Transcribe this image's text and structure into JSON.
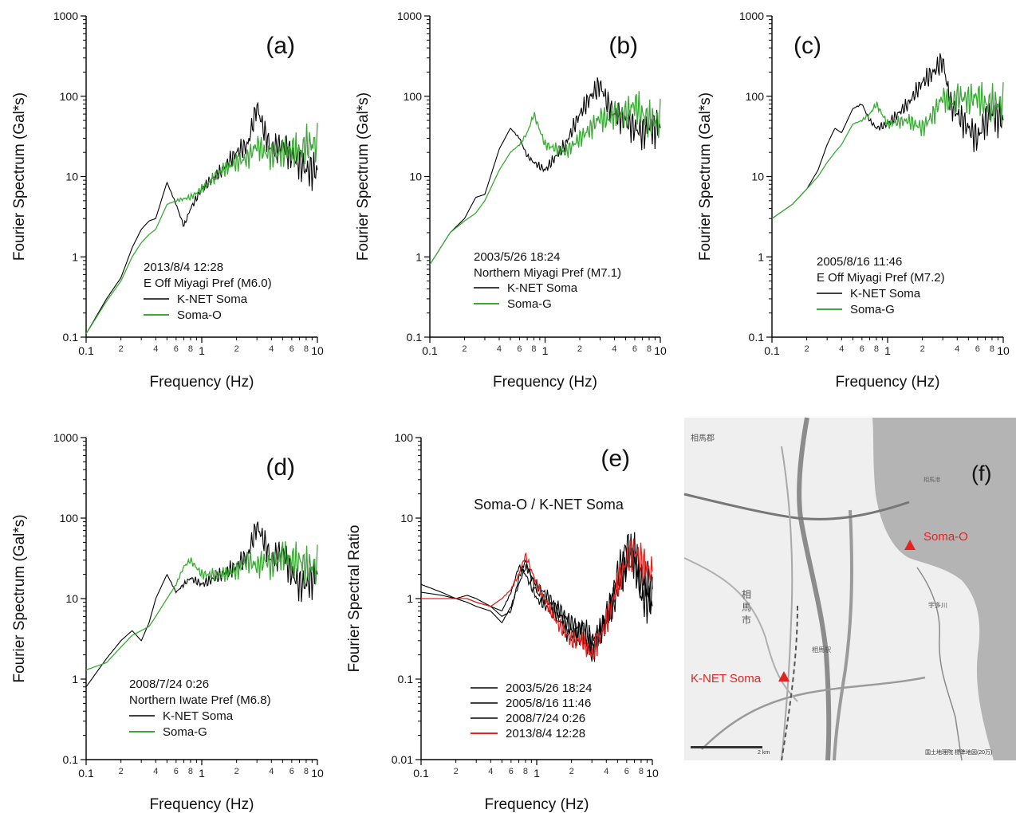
{
  "panels": [
    {
      "id": "a",
      "panel_label": "(a)",
      "ylabel": "Fourier Spectrum (Gal*s)",
      "xlabel": "Frequency (Hz)",
      "ytick_labels": [
        "1000",
        "100",
        "10",
        "1",
        "0.1"
      ],
      "xtick_major": [
        "0.1",
        "1",
        "10"
      ],
      "xtick_minor": [
        "2",
        "4",
        "6",
        "8",
        "2",
        "4",
        "6",
        "8"
      ],
      "event_lines": [
        "2013/8/4 12:28",
        "E Off Miyagi Pref (M6.0)"
      ],
      "legend": [
        {
          "label": "K-NET Soma",
          "color": "#000000"
        },
        {
          "label": "Soma-O",
          "color": "#3aaa35"
        }
      ]
    },
    {
      "id": "b",
      "panel_label": "(b)",
      "ylabel": "Fourier Spectrum (Gal*s)",
      "xlabel": "Frequency (Hz)",
      "ytick_labels": [
        "1000",
        "100",
        "10",
        "1",
        "0.1"
      ],
      "xtick_major": [
        "0.1",
        "1",
        "10"
      ],
      "xtick_minor": [
        "2",
        "4",
        "6",
        "8",
        "2",
        "4",
        "6",
        "8"
      ],
      "event_lines": [
        "2003/5/26 18:24",
        "Northern Miyagi Pref (M7.1)"
      ],
      "legend": [
        {
          "label": "K-NET Soma",
          "color": "#000000"
        },
        {
          "label": "Soma-G",
          "color": "#3aaa35"
        }
      ]
    },
    {
      "id": "c",
      "panel_label": "(c)",
      "ylabel": "Fourier Spectrum (Gal*s)",
      "xlabel": "Frequency (Hz)",
      "ytick_labels": [
        "1000",
        "100",
        "10",
        "1",
        "0.1"
      ],
      "xtick_major": [
        "0.1",
        "1",
        "10"
      ],
      "xtick_minor": [
        "2",
        "4",
        "6",
        "8",
        "2",
        "4",
        "6",
        "8"
      ],
      "event_lines": [
        "2005/8/16 11:46",
        "E Off Miyagi Pref (M7.2)"
      ],
      "legend": [
        {
          "label": "K-NET Soma",
          "color": "#000000"
        },
        {
          "label": "Soma-G",
          "color": "#3aaa35"
        }
      ]
    },
    {
      "id": "d",
      "panel_label": "(d)",
      "ylabel": "Fourier Spectrum (Gal*s)",
      "xlabel": "Frequency (Hz)",
      "ytick_labels": [
        "1000",
        "100",
        "10",
        "1",
        "0.1"
      ],
      "xtick_major": [
        "0.1",
        "1",
        "10"
      ],
      "xtick_minor": [
        "2",
        "4",
        "6",
        "8",
        "2",
        "4",
        "6",
        "8"
      ],
      "event_lines": [
        "2008/7/24 0:26",
        "Northern Iwate Pref (M6.8)"
      ],
      "legend": [
        {
          "label": "K-NET Soma",
          "color": "#000000"
        },
        {
          "label": "Soma-G",
          "color": "#3aaa35"
        }
      ]
    },
    {
      "id": "e",
      "panel_label": "(e)",
      "ylabel": "Fourier Spectral Ratio",
      "xlabel": "Frequency (Hz)",
      "ytick_labels": [
        "100",
        "10",
        "1",
        "0.1",
        "0.01"
      ],
      "xtick_major": [
        "0.1",
        "1",
        "10"
      ],
      "xtick_minor": [
        "2",
        "4",
        "6",
        "8",
        "2",
        "4",
        "6",
        "8"
      ],
      "ratio_title": "Soma-O / K-NET Soma",
      "legend": [
        {
          "label": "2003/5/26 18:24",
          "color": "#000000"
        },
        {
          "label": "2005/8/16 11:46",
          "color": "#000000"
        },
        {
          "label": "2008/7/24 0:26",
          "color": "#000000"
        },
        {
          "label": "2013/8/4 12:28",
          "color": "#e3231f"
        }
      ]
    }
  ],
  "map": {
    "panel_label": "(f)",
    "station_labels": [
      "Soma-O",
      "K-NET Soma"
    ],
    "station_color": "#e3231f"
  },
  "chart_data": [
    {
      "type": "line",
      "panel": "a",
      "x_scale": "log",
      "y_scale": "log",
      "xlim": [
        0.1,
        10
      ],
      "ylim": [
        0.1,
        1000
      ],
      "series": [
        {
          "name": "K-NET Soma",
          "color": "#000000",
          "x": [
            0.1,
            0.15,
            0.2,
            0.25,
            0.3,
            0.35,
            0.4,
            0.5,
            0.6,
            0.7,
            0.8,
            1,
            1.5,
            2,
            2.5,
            3,
            3.5,
            4,
            5,
            6,
            7,
            8,
            10
          ],
          "y": [
            0.11,
            0.3,
            0.55,
            1.3,
            2.2,
            2.8,
            3.0,
            8.5,
            4.5,
            2.4,
            4.0,
            7.0,
            12,
            20,
            25,
            75,
            35,
            22,
            25,
            18,
            15,
            12,
            12
          ]
        },
        {
          "name": "Soma-O",
          "color": "#3aaa35",
          "x": [
            0.1,
            0.15,
            0.2,
            0.25,
            0.3,
            0.35,
            0.4,
            0.5,
            0.6,
            0.7,
            0.8,
            1,
            1.5,
            2,
            2.5,
            3,
            3.5,
            4,
            5,
            6,
            7,
            8,
            10
          ],
          "y": [
            0.11,
            0.28,
            0.5,
            1.0,
            1.5,
            1.9,
            2.2,
            4.5,
            5.0,
            5.3,
            5.5,
            7.0,
            12,
            15,
            17,
            25,
            20,
            18,
            20,
            22,
            20,
            25,
            25
          ]
        }
      ]
    },
    {
      "type": "line",
      "panel": "b",
      "x_scale": "log",
      "y_scale": "log",
      "xlim": [
        0.1,
        10
      ],
      "ylim": [
        0.1,
        1000
      ],
      "series": [
        {
          "name": "K-NET Soma",
          "color": "#000000",
          "x": [
            0.1,
            0.15,
            0.2,
            0.25,
            0.3,
            0.35,
            0.4,
            0.5,
            0.6,
            0.7,
            0.8,
            1,
            1.5,
            2,
            2.5,
            3,
            3.5,
            4,
            5,
            6,
            7,
            8,
            10
          ],
          "y": [
            0.8,
            2.0,
            3.0,
            5.5,
            6.0,
            12,
            22,
            40,
            30,
            18,
            15,
            12,
            25,
            60,
            100,
            140,
            80,
            60,
            50,
            40,
            35,
            40,
            40
          ]
        },
        {
          "name": "Soma-G",
          "color": "#3aaa35",
          "x": [
            0.1,
            0.15,
            0.2,
            0.25,
            0.3,
            0.35,
            0.4,
            0.5,
            0.6,
            0.7,
            0.8,
            1,
            1.5,
            2,
            2.5,
            3,
            3.5,
            4,
            5,
            6,
            7,
            8,
            10
          ],
          "y": [
            0.8,
            2.0,
            2.8,
            3.5,
            5.0,
            8.0,
            12,
            20,
            25,
            35,
            60,
            25,
            20,
            30,
            40,
            55,
            50,
            60,
            60,
            80,
            60,
            50,
            50
          ]
        }
      ]
    },
    {
      "type": "line",
      "panel": "c",
      "x_scale": "log",
      "y_scale": "log",
      "xlim": [
        0.1,
        10
      ],
      "ylim": [
        0.1,
        1000
      ],
      "series": [
        {
          "name": "K-NET Soma",
          "color": "#000000",
          "x": [
            0.1,
            0.15,
            0.2,
            0.25,
            0.3,
            0.35,
            0.4,
            0.5,
            0.6,
            0.7,
            0.8,
            1,
            1.5,
            2,
            2.5,
            3,
            3.5,
            4,
            5,
            6,
            7,
            8,
            10
          ],
          "y": [
            3.0,
            4.5,
            7.0,
            12,
            25,
            40,
            35,
            70,
            80,
            50,
            40,
            45,
            80,
            150,
            200,
            280,
            80,
            60,
            40,
            30,
            50,
            60,
            50
          ]
        },
        {
          "name": "Soma-G",
          "color": "#3aaa35",
          "x": [
            0.1,
            0.15,
            0.2,
            0.25,
            0.3,
            0.35,
            0.4,
            0.5,
            0.6,
            0.7,
            0.8,
            1,
            1.5,
            2,
            2.5,
            3,
            3.5,
            4,
            5,
            6,
            7,
            8,
            10
          ],
          "y": [
            3.0,
            4.5,
            7.0,
            10,
            15,
            20,
            25,
            45,
            50,
            60,
            80,
            45,
            50,
            40,
            60,
            100,
            80,
            100,
            90,
            100,
            80,
            80,
            80
          ]
        }
      ]
    },
    {
      "type": "line",
      "panel": "d",
      "x_scale": "log",
      "y_scale": "log",
      "xlim": [
        0.1,
        10
      ],
      "ylim": [
        0.1,
        1000
      ],
      "series": [
        {
          "name": "K-NET Soma",
          "color": "#000000",
          "x": [
            0.1,
            0.15,
            0.2,
            0.25,
            0.3,
            0.35,
            0.4,
            0.5,
            0.6,
            0.7,
            0.8,
            1,
            1.5,
            2,
            2.5,
            3,
            3.5,
            4,
            5,
            6,
            7,
            8,
            10
          ],
          "y": [
            0.8,
            1.8,
            3.0,
            4.0,
            3.0,
            5.0,
            10,
            20,
            12,
            15,
            18,
            15,
            20,
            25,
            35,
            80,
            50,
            30,
            40,
            20,
            15,
            15,
            20
          ]
        },
        {
          "name": "Soma-G",
          "color": "#3aaa35",
          "x": [
            0.1,
            0.15,
            0.2,
            0.25,
            0.3,
            0.35,
            0.4,
            0.5,
            0.6,
            0.7,
            0.8,
            1,
            1.5,
            2,
            2.5,
            3,
            3.5,
            4,
            5,
            6,
            7,
            8,
            10
          ],
          "y": [
            1.3,
            1.6,
            2.5,
            3.5,
            4.0,
            4.5,
            6.0,
            10,
            15,
            25,
            30,
            20,
            20,
            22,
            30,
            25,
            30,
            25,
            35,
            30,
            30,
            25,
            25
          ]
        }
      ]
    },
    {
      "type": "line",
      "panel": "e",
      "x_scale": "log",
      "y_scale": "log",
      "xlim": [
        0.1,
        10
      ],
      "ylim": [
        0.01,
        100
      ],
      "title": "Soma-O / K-NET Soma",
      "series": [
        {
          "name": "2003/5/26 18:24",
          "color": "#000000",
          "x": [
            0.1,
            0.15,
            0.2,
            0.25,
            0.3,
            0.4,
            0.5,
            0.6,
            0.7,
            0.8,
            1,
            1.5,
            2,
            2.5,
            3,
            4,
            5,
            6,
            7,
            8,
            10
          ],
          "y": [
            1.5,
            1.2,
            1.0,
            1.1,
            1.0,
            0.8,
            0.7,
            1.2,
            2.5,
            2.0,
            1.0,
            0.6,
            0.3,
            0.5,
            0.3,
            0.5,
            1.5,
            2.5,
            3.0,
            1.0,
            0.8
          ]
        },
        {
          "name": "2005/8/16 11:46",
          "color": "#000000",
          "x": [
            0.1,
            0.15,
            0.2,
            0.25,
            0.3,
            0.4,
            0.5,
            0.6,
            0.7,
            0.8,
            1,
            1.5,
            2,
            2.5,
            3,
            4,
            5,
            6,
            7,
            8,
            10
          ],
          "y": [
            1.0,
            1.0,
            1.0,
            0.9,
            0.8,
            0.7,
            0.5,
            0.8,
            1.5,
            2.5,
            1.5,
            0.8,
            0.5,
            0.4,
            0.2,
            0.6,
            2.0,
            5.0,
            3.0,
            1.5,
            1.0
          ]
        },
        {
          "name": "2008/7/24 0:26",
          "color": "#000000",
          "x": [
            0.1,
            0.15,
            0.2,
            0.25,
            0.3,
            0.4,
            0.5,
            0.6,
            0.7,
            0.8,
            1,
            1.5,
            2,
            2.5,
            3,
            4,
            5,
            6,
            7,
            8,
            10
          ],
          "y": [
            1.2,
            1.1,
            1.0,
            1.0,
            0.9,
            0.8,
            0.6,
            0.7,
            1.8,
            3.0,
            1.2,
            0.7,
            0.4,
            0.3,
            0.25,
            0.5,
            1.2,
            3.0,
            4.0,
            2.0,
            1.5
          ]
        },
        {
          "name": "2013/8/4 12:28",
          "color": "#e3231f",
          "x": [
            0.1,
            0.15,
            0.2,
            0.25,
            0.3,
            0.4,
            0.5,
            0.6,
            0.7,
            0.8,
            1,
            1.5,
            2,
            2.5,
            3,
            4,
            5,
            6,
            7,
            8,
            10
          ],
          "y": [
            1.0,
            1.0,
            1.0,
            1.0,
            0.9,
            0.8,
            1.0,
            1.3,
            2.0,
            3.5,
            1.5,
            0.5,
            0.3,
            0.3,
            0.2,
            0.5,
            1.5,
            3.0,
            4.0,
            3.0,
            2.0
          ]
        }
      ]
    }
  ]
}
